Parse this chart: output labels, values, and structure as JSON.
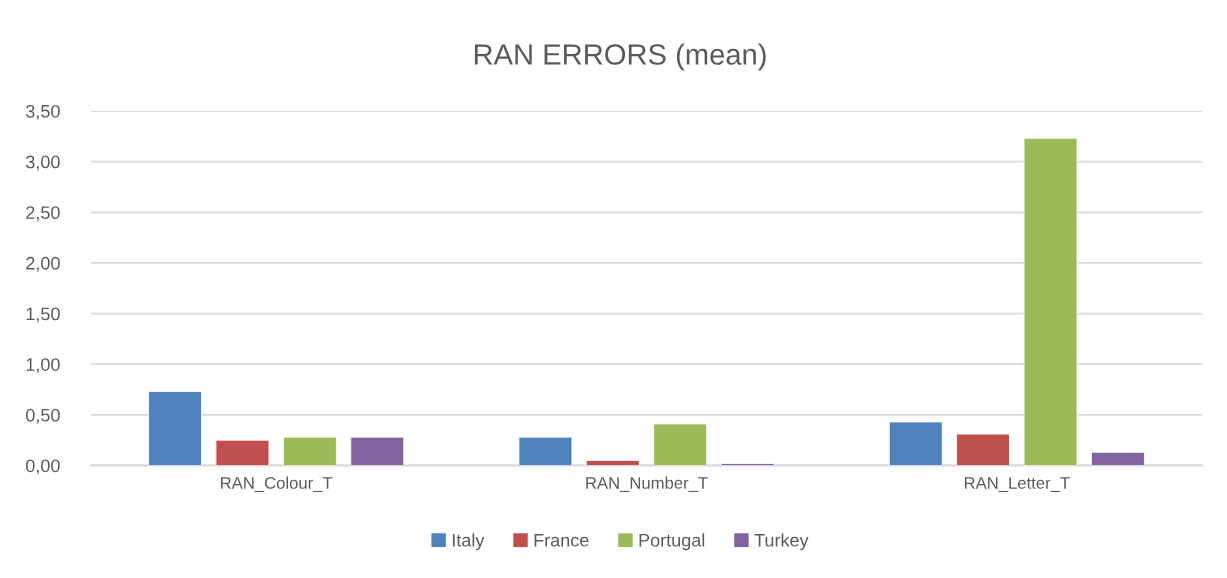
{
  "chart_data": {
    "type": "bar",
    "title": "RAN ERRORS (mean)",
    "categories": [
      "RAN_Colour_T",
      "RAN_Number_T",
      "RAN_Letter_T"
    ],
    "series": [
      {
        "name": "Italy",
        "color": "#4f81bd",
        "values": [
          0.73,
          0.28,
          0.43
        ]
      },
      {
        "name": "France",
        "color": "#c0504d",
        "values": [
          0.25,
          0.05,
          0.31
        ]
      },
      {
        "name": "Portugal",
        "color": "#9bbb59",
        "values": [
          0.28,
          0.41,
          3.23
        ]
      },
      {
        "name": "Turkey",
        "color": "#8064a2",
        "values": [
          0.28,
          0.02,
          0.13
        ]
      }
    ],
    "ylim": [
      0,
      3.5
    ],
    "yticks": [
      {
        "value": 0,
        "label": "0,00"
      },
      {
        "value": 0.5,
        "label": "0,50"
      },
      {
        "value": 1,
        "label": "1,00"
      },
      {
        "value": 1.5,
        "label": "1,50"
      },
      {
        "value": 2,
        "label": "2,00"
      },
      {
        "value": 2.5,
        "label": "2,50"
      },
      {
        "value": 3,
        "label": "3,00"
      },
      {
        "value": 3.5,
        "label": "3,50"
      }
    ],
    "grid": "y",
    "legend": "bottom"
  }
}
